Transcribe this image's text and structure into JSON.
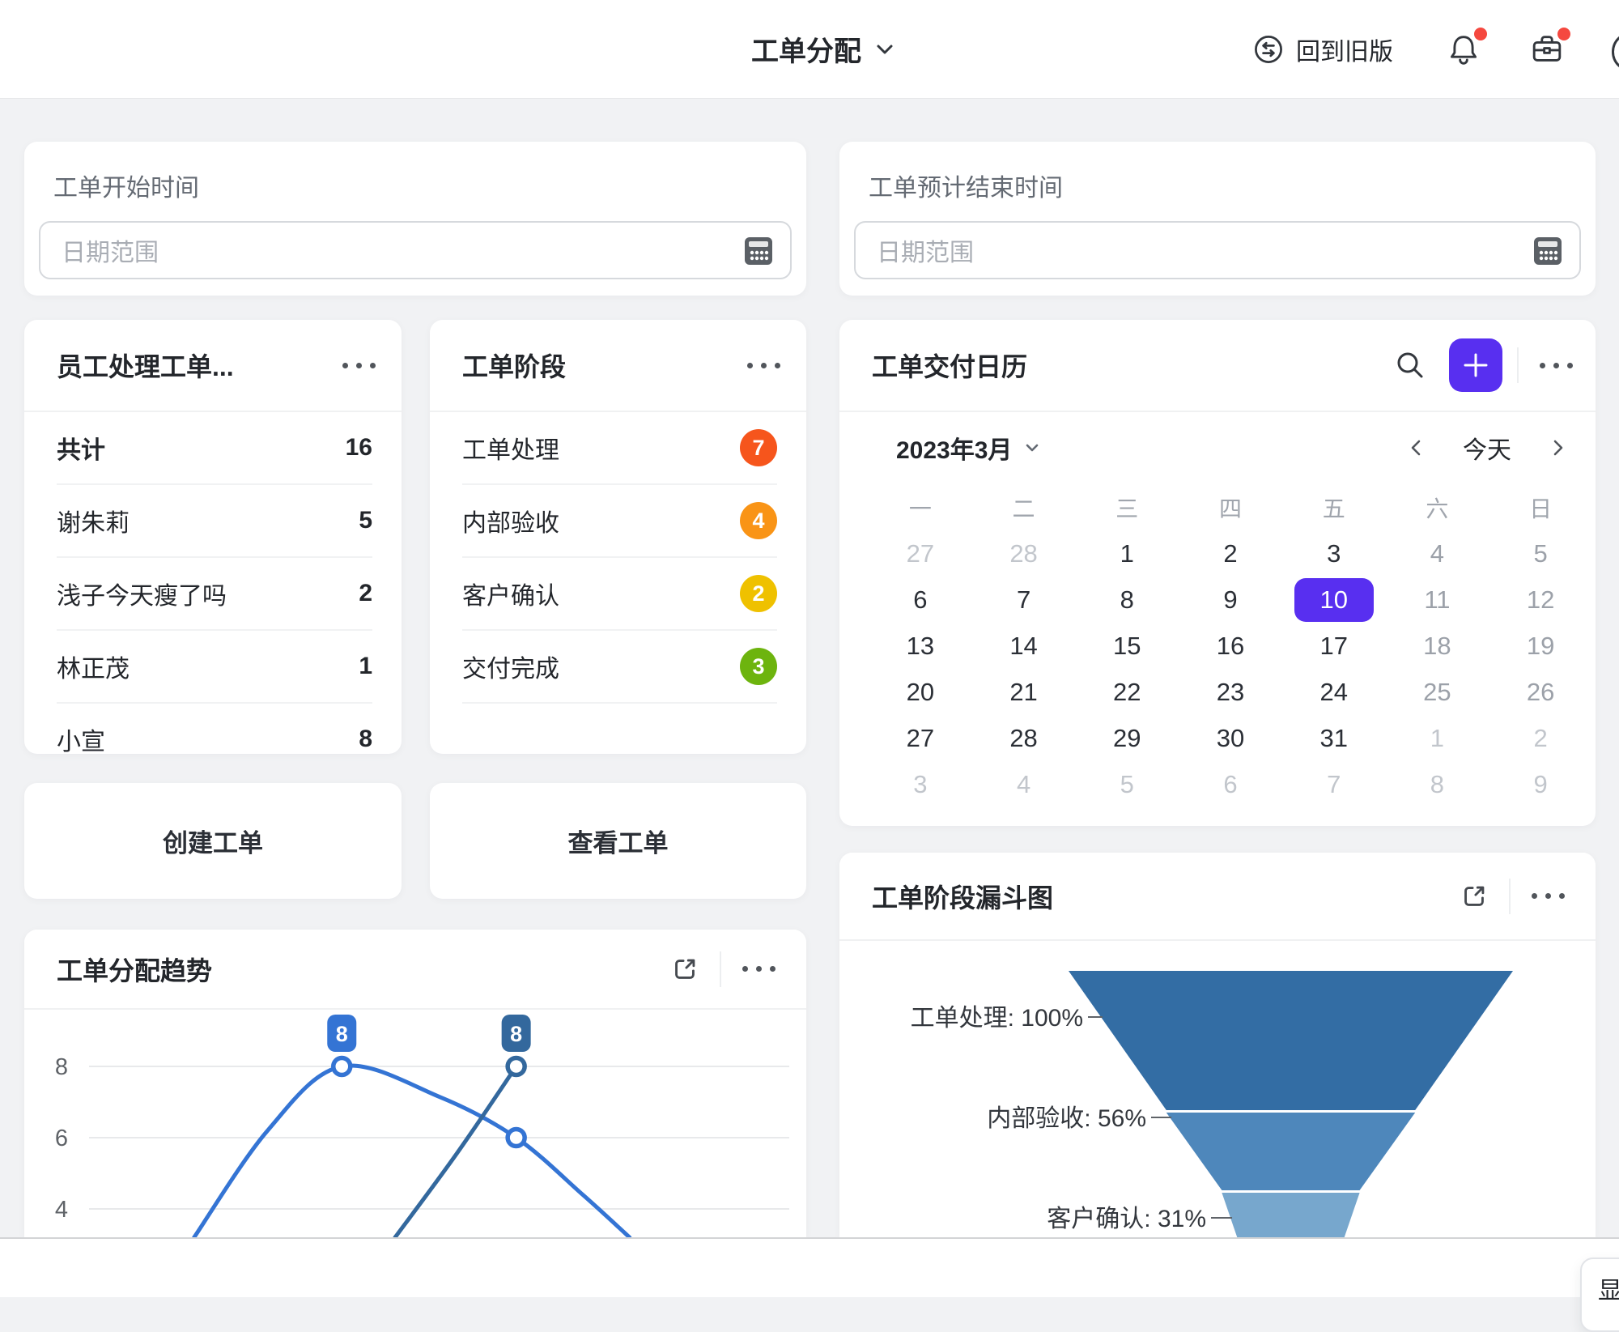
{
  "topbar": {
    "title": "工单分配",
    "back_label": "回到旧版"
  },
  "filters": [
    {
      "label": "工单开始时间",
      "placeholder": "日期范围"
    },
    {
      "label": "工单预计结束时间",
      "placeholder": "日期范围"
    }
  ],
  "employee_card": {
    "title": "员工处理工单...",
    "rows": [
      {
        "name": "共计",
        "value": "16",
        "bold": true
      },
      {
        "name": "谢朱莉",
        "value": "5"
      },
      {
        "name": "浅子今天瘦了吗",
        "value": "2"
      },
      {
        "name": "林正茂",
        "value": "1"
      },
      {
        "name": "小宣",
        "value": "8"
      }
    ]
  },
  "stage_card": {
    "title": "工单阶段",
    "rows": [
      {
        "name": "工单处理",
        "value": "7",
        "color": "#F6551C"
      },
      {
        "name": "内部验收",
        "value": "4",
        "color": "#F99416"
      },
      {
        "name": "客户确认",
        "value": "2",
        "color": "#EFC100"
      },
      {
        "name": "交付完成",
        "value": "3",
        "color": "#6DB40E"
      }
    ]
  },
  "calendar_card": {
    "title": "工单交付日历",
    "month": "2023年3月",
    "today_label": "今天",
    "weekdays": [
      "一",
      "二",
      "三",
      "四",
      "五",
      "六",
      "日"
    ],
    "selected_color": "#582FF0",
    "days": [
      {
        "d": "27",
        "state": "muted"
      },
      {
        "d": "28",
        "state": "muted"
      },
      {
        "d": "1",
        "state": "normal"
      },
      {
        "d": "2",
        "state": "normal"
      },
      {
        "d": "3",
        "state": "normal"
      },
      {
        "d": "4",
        "state": "weekend"
      },
      {
        "d": "5",
        "state": "weekend"
      },
      {
        "d": "6",
        "state": "normal"
      },
      {
        "d": "7",
        "state": "normal"
      },
      {
        "d": "8",
        "state": "normal"
      },
      {
        "d": "9",
        "state": "normal"
      },
      {
        "d": "10",
        "state": "selected"
      },
      {
        "d": "11",
        "state": "weekend"
      },
      {
        "d": "12",
        "state": "weekend"
      },
      {
        "d": "13",
        "state": "normal"
      },
      {
        "d": "14",
        "state": "normal"
      },
      {
        "d": "15",
        "state": "normal"
      },
      {
        "d": "16",
        "state": "normal"
      },
      {
        "d": "17",
        "state": "normal"
      },
      {
        "d": "18",
        "state": "weekend"
      },
      {
        "d": "19",
        "state": "weekend"
      },
      {
        "d": "20",
        "state": "normal"
      },
      {
        "d": "21",
        "state": "normal"
      },
      {
        "d": "22",
        "state": "normal"
      },
      {
        "d": "23",
        "state": "normal"
      },
      {
        "d": "24",
        "state": "normal"
      },
      {
        "d": "25",
        "state": "weekend"
      },
      {
        "d": "26",
        "state": "weekend"
      },
      {
        "d": "27",
        "state": "normal"
      },
      {
        "d": "28",
        "state": "normal"
      },
      {
        "d": "29",
        "state": "normal"
      },
      {
        "d": "30",
        "state": "normal"
      },
      {
        "d": "31",
        "state": "normal"
      },
      {
        "d": "1",
        "state": "muted"
      },
      {
        "d": "2",
        "state": "muted"
      },
      {
        "d": "3",
        "state": "muted"
      },
      {
        "d": "4",
        "state": "muted"
      },
      {
        "d": "5",
        "state": "muted"
      },
      {
        "d": "6",
        "state": "muted"
      },
      {
        "d": "7",
        "state": "muted"
      },
      {
        "d": "8",
        "state": "muted"
      },
      {
        "d": "9",
        "state": "muted"
      }
    ]
  },
  "actions": {
    "create_label": "创建工单",
    "view_label": "查看工单"
  },
  "bottom": {
    "peek_label": "显"
  },
  "chart_data": [
    {
      "type": "line",
      "title": "工单分配趋势",
      "y_ticks": [
        8,
        6,
        4
      ],
      "ylim_visible": [
        3.2,
        8.8
      ],
      "grid": true,
      "legend_position": "none",
      "series": [
        {
          "color": "#3474D4",
          "points": [
            [
              0.15,
              3.2
            ],
            [
              0.255,
              6.2
            ],
            [
              0.361,
              8
            ],
            [
              0.5,
              7.15
            ],
            [
              0.61,
              6
            ],
            [
              0.705,
              4.4
            ],
            [
              0.772,
              3.2
            ]
          ],
          "markers": [
            {
              "x": 0.361,
              "v": 8,
              "label": "8"
            },
            {
              "x": 0.61,
              "v": 6
            }
          ]
        },
        {
          "color": "#33689D",
          "points": [
            [
              0.437,
              3.2
            ],
            [
              0.525,
              5.55
            ],
            [
              0.61,
              8
            ]
          ],
          "markers": [
            {
              "x": 0.61,
              "v": 8,
              "label": "8"
            }
          ]
        }
      ]
    },
    {
      "type": "funnel",
      "title": "工单阶段漏斗图",
      "stages": [
        {
          "label": "工单处理",
          "percent": 100,
          "display": "工单处理: 100%",
          "color": "#336DA4"
        },
        {
          "label": "内部验收",
          "percent": 56,
          "display": "内部验收: 56%",
          "color": "#4E87BB"
        },
        {
          "label": "客户确认",
          "percent": 31,
          "display": "客户确认: 31%",
          "color": "#77A7CD"
        }
      ]
    }
  ]
}
